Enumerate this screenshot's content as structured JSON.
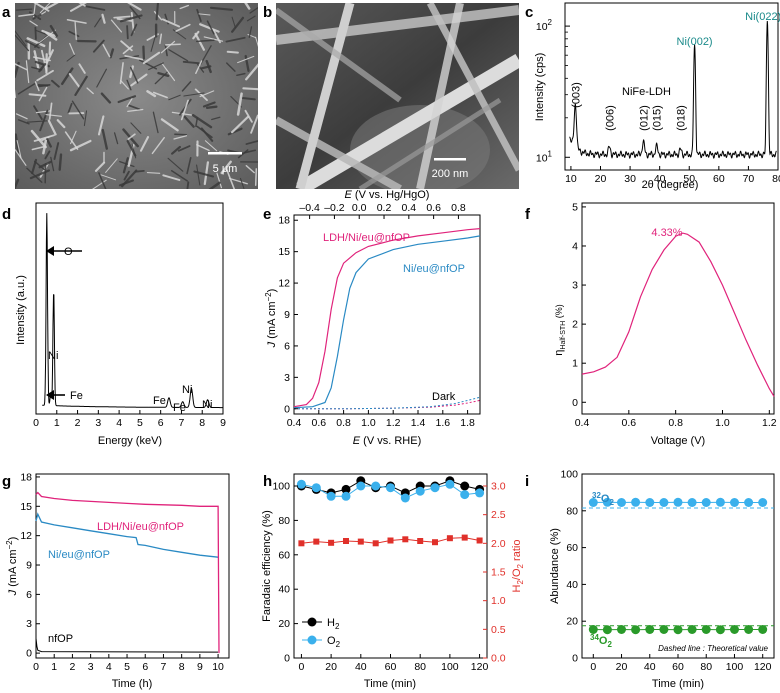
{
  "colors": {
    "pink": "#e0237b",
    "blue": "#2a8ac4",
    "teal": "#1a8a8a",
    "red": "#e0302a",
    "green": "#2a9a2a",
    "lightblue": "#3ab0ec",
    "black": "#000000"
  },
  "panels": {
    "a": {
      "label": "a",
      "scale_bar": "5 μm"
    },
    "b": {
      "label": "b",
      "scale_bar": "200 nm"
    },
    "c": {
      "label": "c",
      "ylabel": "Intensity (cps)",
      "xlabel": "2θ (degree)",
      "sample": "NiFe-LDH",
      "peaks": [
        "(003)",
        "(006)",
        "(012)",
        "(015)",
        "(018)",
        "Ni(002)",
        "Ni(022)"
      ],
      "xticks": [
        "10",
        "20",
        "30",
        "40",
        "50",
        "60",
        "70",
        "80"
      ],
      "yticks": [
        {
          "base": "10",
          "exp": "1"
        },
        {
          "base": "10",
          "exp": "2"
        }
      ]
    },
    "d": {
      "label": "d",
      "ylabel": "Intensity (a.u.)",
      "xlabel": "Energy (keV)",
      "peaks": [
        "O",
        "Ni",
        "Fe",
        "Fe",
        "Fe",
        "Ni",
        "Ni"
      ],
      "xticks": [
        "0",
        "1",
        "2",
        "3",
        "4",
        "5",
        "6",
        "7",
        "8",
        "9"
      ]
    },
    "e": {
      "label": "e",
      "ylabel_main": "J",
      "ylabel_unit": "(mA cm",
      "xlabel_bottom": "(V vs. RHE)",
      "xlabel_top": "(V vs. Hg/HgO)",
      "E": "E",
      "series": [
        "LDH/Ni/eu@nfOP",
        "Ni/eu@nfOP"
      ],
      "dark": "Dark",
      "xticks": [
        "0.4",
        "0.6",
        "0.8",
        "1.0",
        "1.2",
        "1.4",
        "1.6",
        "1.8"
      ],
      "xticks_top": [
        "–0.4",
        "–0.2",
        "0.0",
        "0.2",
        "0.4",
        "0.6",
        "0.8"
      ],
      "yticks": [
        "0",
        "3",
        "6",
        "9",
        "12",
        "15",
        "18"
      ]
    },
    "f": {
      "label": "f",
      "ylabel": "η",
      "ylabel_sub": "Half-STH",
      "ylabel_unit": "(%)",
      "xlabel": "Voltage (V)",
      "peak_label": "4.33%",
      "xticks": [
        "0.4",
        "0.6",
        "0.8",
        "1.0",
        "1.2"
      ],
      "yticks": [
        "0",
        "1",
        "2",
        "3",
        "4",
        "5"
      ]
    },
    "g": {
      "label": "g",
      "ylabel_main": "J",
      "ylabel_unit": "(mA cm",
      "xlabel": "Time (h)",
      "series": [
        "LDH/Ni/eu@nfOP",
        "Ni/eu@nfOP",
        "nfOP"
      ],
      "xticks": [
        "0",
        "1",
        "2",
        "3",
        "4",
        "5",
        "6",
        "7",
        "8",
        "9",
        "10"
      ],
      "yticks": [
        "0",
        "3",
        "6",
        "9",
        "12",
        "15",
        "18"
      ]
    },
    "h": {
      "label": "h",
      "ylabel_left": "Faradaic efficiency (%)",
      "ylabel_right_pre": "H",
      "ylabel_right_mid": "/O",
      "ylabel_right_post": " ratio",
      "xlabel": "Time (min)",
      "legend": [
        "H",
        "O"
      ],
      "xticks": [
        "0",
        "20",
        "40",
        "60",
        "80",
        "100",
        "120"
      ],
      "yticks_left": [
        "0",
        "20",
        "40",
        "60",
        "80",
        "100"
      ],
      "yticks_right": [
        "0.0",
        "0.5",
        "1.0",
        "1.5",
        "2.0",
        "2.5",
        "3.0"
      ]
    },
    "i": {
      "label": "i",
      "ylabel": "Abundance (%)",
      "xlabel": "Time (min)",
      "label_32": "32",
      "label_34": "34",
      "O": "O",
      "sub": "2",
      "note": "Dashed line : Theoretical value",
      "xticks": [
        "0",
        "20",
        "40",
        "60",
        "80",
        "100",
        "120"
      ],
      "yticks": [
        "0",
        "20",
        "40",
        "60",
        "80",
        "100"
      ]
    }
  },
  "chart_data": [
    {
      "panel": "c",
      "type": "line",
      "title": "",
      "xlabel": "2θ (degree)",
      "ylabel": "Intensity (cps)",
      "xlim": [
        8,
        80
      ],
      "ylim": [
        8,
        150
      ],
      "yscale": "log",
      "peaks": {
        "(003)": 11.5,
        "(006)": 23,
        "(012)": 34.5,
        "(015)": 39,
        "(018)": 47,
        "Ni(002)": 51.8,
        "Ni(022)": 76.4
      },
      "peak_heights": {
        "(003)": 24,
        "(006)": 12,
        "(012)": 13.2,
        "(015)": 12.2,
        "(018)": 11.5,
        "Ni(002)": 72,
        "Ni(022)": 110
      }
    },
    {
      "panel": "d",
      "type": "line",
      "xlabel": "Energy (keV)",
      "ylabel": "Intensity (a.u.)",
      "xlim": [
        0,
        9
      ],
      "peaks": {
        "O": 0.52,
        "Ni": 0.85,
        "Fe": 0.71,
        "Fe Kα": 6.4,
        "Fe Kβ": 7.06,
        "Ni Kα": 7.48,
        "Ni Kβ": 8.26
      },
      "peak_heights": {
        "O": 1.0,
        "Ni": 0.6,
        "Fe": 0.06,
        "Fe Kα": 0.05,
        "Fe Kβ": 0.03,
        "Ni Kα": 0.1,
        "Ni Kβ": 0.04
      }
    },
    {
      "panel": "e",
      "type": "line",
      "xlabel": "E (V vs. RHE)",
      "ylabel": "J (mA cm−2)",
      "xlim": [
        0.4,
        1.9
      ],
      "ylim": [
        -0.5,
        18.5
      ],
      "series": [
        {
          "name": "LDH/Ni/eu@nfOP",
          "x": [
            0.4,
            0.5,
            0.55,
            0.6,
            0.65,
            0.7,
            0.75,
            0.8,
            0.9,
            1.0,
            1.2,
            1.4,
            1.6,
            1.8,
            1.9
          ],
          "values": [
            0.2,
            0.4,
            1.0,
            2.5,
            5.5,
            9.5,
            12.5,
            13.9,
            14.9,
            15.5,
            16.1,
            16.5,
            16.8,
            17.1,
            17.2
          ]
        },
        {
          "name": "Ni/eu@nfOP",
          "x": [
            0.4,
            0.55,
            0.65,
            0.7,
            0.75,
            0.8,
            0.85,
            0.9,
            1.0,
            1.2,
            1.4,
            1.6,
            1.8,
            1.9
          ],
          "values": [
            0.1,
            0.2,
            0.6,
            2.0,
            5.0,
            8.5,
            11.5,
            13.0,
            14.3,
            15.2,
            15.7,
            16.0,
            16.3,
            16.5
          ]
        },
        {
          "name": "Dark LDH/Ni/eu@nfOP",
          "x": [
            0.4,
            0.8,
            1.2,
            1.5,
            1.7,
            1.8,
            1.9
          ],
          "values": [
            0,
            0,
            0.05,
            0.15,
            0.35,
            0.55,
            0.8
          ]
        },
        {
          "name": "Dark Ni/eu@nfOP",
          "x": [
            0.4,
            0.8,
            1.2,
            1.5,
            1.7,
            1.8,
            1.9
          ],
          "values": [
            0,
            0,
            0.05,
            0.2,
            0.5,
            0.8,
            1.1
          ]
        }
      ]
    },
    {
      "panel": "f",
      "type": "line",
      "xlabel": "Voltage (V)",
      "ylabel": "ηHalf-STH (%)",
      "xlim": [
        0.4,
        1.22
      ],
      "ylim": [
        -0.3,
        5.1
      ],
      "series": [
        {
          "name": "ηHalf-STH",
          "x": [
            0.4,
            0.45,
            0.5,
            0.55,
            0.6,
            0.65,
            0.7,
            0.75,
            0.8,
            0.83,
            0.85,
            0.9,
            0.95,
            1.0,
            1.05,
            1.1,
            1.15,
            1.2,
            1.22
          ],
          "values": [
            0.72,
            0.78,
            0.9,
            1.15,
            1.8,
            2.7,
            3.4,
            3.9,
            4.25,
            4.33,
            4.3,
            4.1,
            3.6,
            3.0,
            2.3,
            1.6,
            0.95,
            0.35,
            0.15
          ]
        }
      ],
      "annotation": {
        "x": 0.83,
        "y": 4.33,
        "text": "4.33%"
      }
    },
    {
      "panel": "g",
      "type": "line",
      "xlabel": "Time (h)",
      "ylabel": "J (mA cm−2)",
      "xlim": [
        0,
        10.6
      ],
      "ylim": [
        -0.5,
        18.3
      ],
      "series": [
        {
          "name": "LDH/Ni/eu@nfOP",
          "x": [
            0,
            0.1,
            0.3,
            1,
            2,
            3,
            4,
            5,
            6,
            7,
            8,
            9,
            9.9,
            10,
            10.05
          ],
          "values": [
            16.2,
            16.4,
            16.0,
            15.8,
            15.6,
            15.5,
            15.4,
            15.3,
            15.2,
            15.15,
            15.1,
            15.0,
            15.0,
            15.0,
            0
          ]
        },
        {
          "name": "Ni/eu@nfOP",
          "x": [
            0,
            0.1,
            0.3,
            1,
            2,
            3,
            4,
            5,
            5.5,
            5.6,
            6,
            7,
            8,
            9,
            10
          ],
          "values": [
            13.5,
            14.2,
            13.4,
            13.1,
            12.8,
            12.5,
            12.2,
            11.9,
            11.8,
            11.1,
            11.0,
            10.6,
            10.3,
            10.0,
            9.8
          ]
        },
        {
          "name": "nfOP",
          "x": [
            0,
            0.05,
            0.1,
            0.3,
            10
          ],
          "values": [
            1.5,
            0.7,
            0.3,
            0.15,
            0.1
          ]
        }
      ]
    },
    {
      "panel": "h",
      "type": "scatter",
      "xlabel": "Time (min)",
      "ylabel": "Faradaic efficiency (%)",
      "ylabel_right": "H2/O2 ratio",
      "xlim": [
        -5,
        125
      ],
      "ylim": [
        0,
        100
      ],
      "ylim_right": [
        0,
        3.0
      ],
      "x": [
        0,
        10,
        20,
        30,
        40,
        50,
        60,
        70,
        80,
        90,
        100,
        110,
        120
      ],
      "series": [
        {
          "name": "H2",
          "axis": "left",
          "values": [
            100,
            98,
            96,
            98,
            103,
            99,
            100,
            96,
            100,
            100,
            103,
            100,
            98
          ]
        },
        {
          "name": "O2",
          "axis": "left",
          "values": [
            101,
            99,
            94,
            94,
            100,
            100,
            99,
            93,
            97,
            99,
            101,
            95,
            96
          ]
        },
        {
          "name": "H2/O2 ratio",
          "axis": "right",
          "values": [
            2.0,
            2.03,
            2.01,
            2.04,
            2.03,
            2.0,
            2.05,
            2.07,
            2.04,
            2.02,
            2.09,
            2.1,
            2.05
          ]
        }
      ]
    },
    {
      "panel": "i",
      "type": "scatter",
      "xlabel": "Time (min)",
      "ylabel": "Abundance (%)",
      "xlim": [
        -8,
        128
      ],
      "ylim": [
        0,
        100
      ],
      "x": [
        0,
        10,
        20,
        30,
        40,
        50,
        60,
        70,
        80,
        90,
        100,
        110,
        120
      ],
      "series": [
        {
          "name": "32O2",
          "values": [
            84.5,
            84.6,
            84.5,
            84.6,
            84.5,
            84.5,
            84.6,
            84.5,
            84.5,
            84.6,
            84.5,
            84.5,
            84.5
          ],
          "theoretical": 81.5
        },
        {
          "name": "34O2",
          "values": [
            15.5,
            15.4,
            15.5,
            15.4,
            15.5,
            15.5,
            15.4,
            15.5,
            15.5,
            15.4,
            15.5,
            15.5,
            15.5
          ],
          "theoretical": 17.5
        }
      ]
    }
  ]
}
